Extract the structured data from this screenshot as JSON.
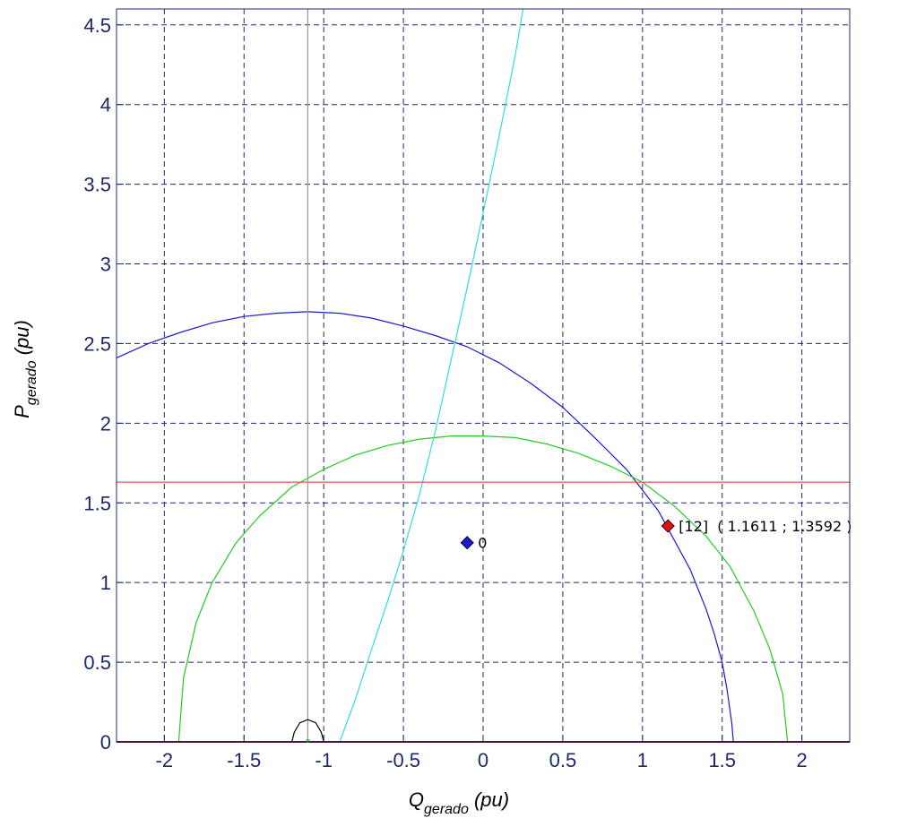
{
  "chart_data": {
    "type": "line",
    "xlabel": {
      "base": "Q",
      "sub": "gerado",
      "unit": " (pu)"
    },
    "ylabel": {
      "base": "P",
      "sub": "gerado",
      "unit": " (pu)"
    },
    "xlim": [
      -2.3,
      2.3
    ],
    "ylim": [
      0,
      4.6
    ],
    "xticks": [
      -2,
      -1.5,
      -1,
      -0.5,
      0,
      0.5,
      1,
      1.5,
      2
    ],
    "xtick_labels": [
      "-2",
      "-1.5",
      "-1",
      "-0.5",
      "0",
      "0.5",
      "1",
      "1.5",
      "2"
    ],
    "yticks": [
      0,
      0.5,
      1,
      1.5,
      2,
      2.5,
      3,
      3.5,
      4,
      4.5
    ],
    "ytick_labels": [
      "0",
      "0.5",
      "1",
      "1.5",
      "2",
      "2.5",
      "3",
      "3.5",
      "4",
      "4.5"
    ],
    "grid": true,
    "colors": {
      "blue_curve": "#1a1acc",
      "green_curve": "#22cc22",
      "cyan_curve": "#33dddd",
      "red_line": "#ee5555",
      "gray_line": "#999999",
      "small_arc": "#000000",
      "axis_color": "#1c2a6b",
      "blue_marker": "#1a1acc",
      "red_marker": "#dd1111",
      "baseline": "#800000"
    },
    "series": [
      {
        "key": "blue",
        "x": [
          -2.3,
          -2.1,
          -1.9,
          -1.7,
          -1.5,
          -1.3,
          -1.1,
          -0.9,
          -0.7,
          -0.5,
          -0.3,
          -0.1,
          0.1,
          0.3,
          0.5,
          0.7,
          0.9,
          1.1,
          1.3,
          1.4,
          1.45,
          1.5,
          1.53,
          1.56,
          1.57
        ],
        "y": [
          2.41,
          2.5,
          2.57,
          2.63,
          2.67,
          2.69,
          2.7,
          2.69,
          2.66,
          2.61,
          2.55,
          2.48,
          2.38,
          2.25,
          2.1,
          1.91,
          1.71,
          1.45,
          1.08,
          0.83,
          0.68,
          0.5,
          0.33,
          0.12,
          0
        ]
      },
      {
        "key": "green",
        "x": [
          -1.91,
          -1.88,
          -1.8,
          -1.7,
          -1.55,
          -1.4,
          -1.2,
          -1.0,
          -0.8,
          -0.6,
          -0.4,
          -0.2,
          0.0,
          0.2,
          0.4,
          0.6,
          0.8,
          1.0,
          1.2,
          1.4,
          1.55,
          1.7,
          1.8,
          1.88,
          1.91
        ],
        "y": [
          0,
          0.4,
          0.75,
          1.0,
          1.25,
          1.42,
          1.6,
          1.71,
          1.8,
          1.86,
          1.9,
          1.92,
          1.92,
          1.91,
          1.87,
          1.81,
          1.73,
          1.63,
          1.48,
          1.29,
          1.1,
          0.82,
          0.58,
          0.3,
          0
        ]
      },
      {
        "key": "cyan",
        "x": [
          -0.9,
          -0.8,
          -0.7,
          -0.6,
          -0.5,
          -0.4,
          -0.3,
          -0.2,
          -0.1,
          0.0,
          0.1,
          0.2,
          0.25
        ],
        "y": [
          0,
          0.27,
          0.58,
          0.88,
          1.2,
          1.55,
          1.95,
          2.4,
          2.85,
          3.32,
          3.8,
          4.3,
          4.6
        ]
      },
      {
        "key": "red_h",
        "x": [
          -2.3,
          2.3
        ],
        "y": [
          1.63,
          1.63
        ]
      },
      {
        "key": "gray_v",
        "x": [
          -1.1,
          -1.1
        ],
        "y": [
          0,
          4.6
        ]
      },
      {
        "key": "arc",
        "x": [
          -1.2,
          -1.185,
          -1.15,
          -1.1,
          -1.05,
          -1.015,
          -1.0
        ],
        "y": [
          0,
          0.06,
          0.12,
          0.14,
          0.12,
          0.06,
          0
        ]
      }
    ],
    "points": [
      {
        "key": "blue_pt",
        "x": -0.1,
        "y": 1.25,
        "label": "0"
      },
      {
        "key": "red_pt",
        "x": 1.16,
        "y": 1.355,
        "label": "[12]  ( 1.1611 ; 1.3592 )"
      }
    ]
  }
}
